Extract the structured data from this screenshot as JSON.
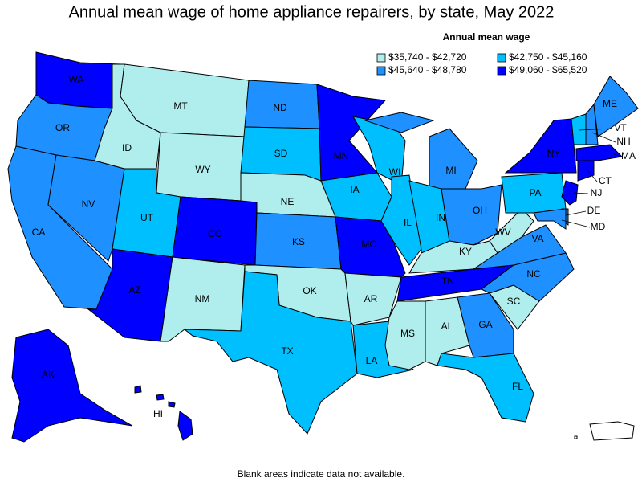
{
  "title": "Annual mean wage of home appliance repairers, by state, May 2022",
  "legend": {
    "title": "Annual mean wage",
    "bins": [
      {
        "label": "$35,740 - $42,720",
        "color": "#b0eeee"
      },
      {
        "label": "$42,750 - $45,160",
        "color": "#00bfff"
      },
      {
        "label": "$45,640 - $48,780",
        "color": "#1e90ff"
      },
      {
        "label": "$49,060 - $65,520",
        "color": "#0000ff"
      }
    ]
  },
  "states": [
    {
      "abbr": "WA",
      "bin": 3
    },
    {
      "abbr": "OR",
      "bin": 2
    },
    {
      "abbr": "CA",
      "bin": 2
    },
    {
      "abbr": "NV",
      "bin": 2
    },
    {
      "abbr": "ID",
      "bin": 0
    },
    {
      "abbr": "MT",
      "bin": 0
    },
    {
      "abbr": "WY",
      "bin": 0
    },
    {
      "abbr": "UT",
      "bin": 1
    },
    {
      "abbr": "CO",
      "bin": 3
    },
    {
      "abbr": "AZ",
      "bin": 3
    },
    {
      "abbr": "NM",
      "bin": 0
    },
    {
      "abbr": "ND",
      "bin": 2
    },
    {
      "abbr": "SD",
      "bin": 1
    },
    {
      "abbr": "NE",
      "bin": 0
    },
    {
      "abbr": "KS",
      "bin": 2
    },
    {
      "abbr": "OK",
      "bin": 0
    },
    {
      "abbr": "TX",
      "bin": 1
    },
    {
      "abbr": "MN",
      "bin": 3
    },
    {
      "abbr": "IA",
      "bin": 1
    },
    {
      "abbr": "MO",
      "bin": 3
    },
    {
      "abbr": "AR",
      "bin": 0
    },
    {
      "abbr": "LA",
      "bin": 1
    },
    {
      "abbr": "WI",
      "bin": 1
    },
    {
      "abbr": "IL",
      "bin": 1
    },
    {
      "abbr": "MI",
      "bin": 2
    },
    {
      "abbr": "IN",
      "bin": 1
    },
    {
      "abbr": "OH",
      "bin": 2
    },
    {
      "abbr": "KY",
      "bin": 0
    },
    {
      "abbr": "TN",
      "bin": 3
    },
    {
      "abbr": "MS",
      "bin": 0
    },
    {
      "abbr": "AL",
      "bin": 0
    },
    {
      "abbr": "GA",
      "bin": 2
    },
    {
      "abbr": "FL",
      "bin": 1
    },
    {
      "abbr": "SC",
      "bin": 0
    },
    {
      "abbr": "NC",
      "bin": 2
    },
    {
      "abbr": "VA",
      "bin": 2
    },
    {
      "abbr": "WV",
      "bin": 0
    },
    {
      "abbr": "PA",
      "bin": 1
    },
    {
      "abbr": "NY",
      "bin": 3
    },
    {
      "abbr": "VT",
      "bin": 1
    },
    {
      "abbr": "NH",
      "bin": 2
    },
    {
      "abbr": "ME",
      "bin": 2
    },
    {
      "abbr": "MA",
      "bin": 3
    },
    {
      "abbr": "CT",
      "bin": 3
    },
    {
      "abbr": "NJ",
      "bin": 3
    },
    {
      "abbr": "DE",
      "bin": 2
    },
    {
      "abbr": "MD",
      "bin": 2
    },
    {
      "abbr": "AK",
      "bin": 3
    },
    {
      "abbr": "HI",
      "bin": 3
    }
  ],
  "note": "Blank areas indicate data not available."
}
